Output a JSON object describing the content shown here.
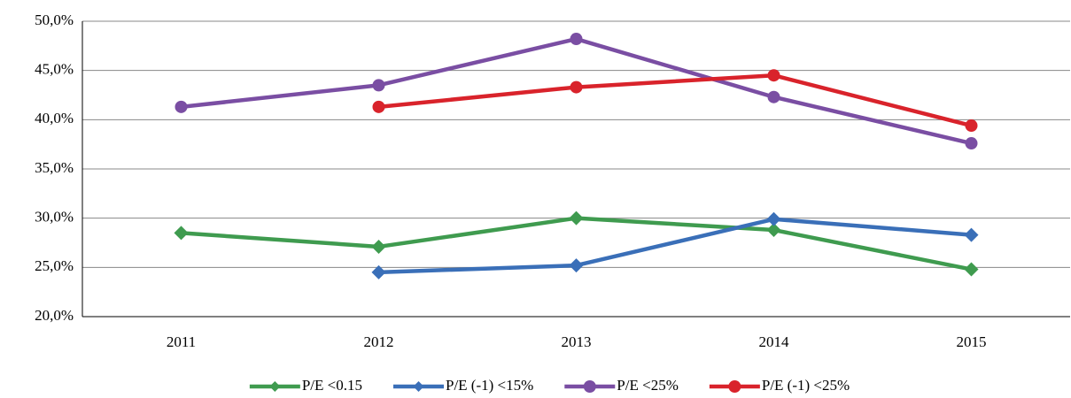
{
  "chart_data": {
    "type": "line",
    "categories": [
      "2011",
      "2012",
      "2013",
      "2014",
      "2015"
    ],
    "series": [
      {
        "name": "P/E <0.15",
        "color": "#3f9b4f",
        "marker": "diamond",
        "values": [
          28.5,
          27.1,
          30.0,
          28.8,
          24.8
        ]
      },
      {
        "name": "P/E (-1) <15%",
        "color": "#3a6fb8",
        "marker": "diamond",
        "values": [
          null,
          24.5,
          25.2,
          29.9,
          28.3
        ]
      },
      {
        "name": "P/E <25%",
        "color": "#7a4ea3",
        "marker": "circle",
        "values": [
          41.3,
          43.5,
          48.2,
          42.3,
          37.6
        ]
      },
      {
        "name": "P/E (-1) <25%",
        "color": "#d9232b",
        "marker": "circle",
        "values": [
          null,
          41.3,
          43.3,
          44.5,
          39.4
        ]
      }
    ],
    "ylim": [
      20,
      50
    ],
    "yticks": [
      {
        "value": 20,
        "label": "20,0%"
      },
      {
        "value": 25,
        "label": "25,0%"
      },
      {
        "value": 30,
        "label": "30,0%"
      },
      {
        "value": 35,
        "label": "35,0%"
      },
      {
        "value": 40,
        "label": "40,0%"
      },
      {
        "value": 45,
        "label": "45,0%"
      },
      {
        "value": 50,
        "label": "50,0%"
      }
    ],
    "grid": true,
    "legend": "bottom"
  }
}
